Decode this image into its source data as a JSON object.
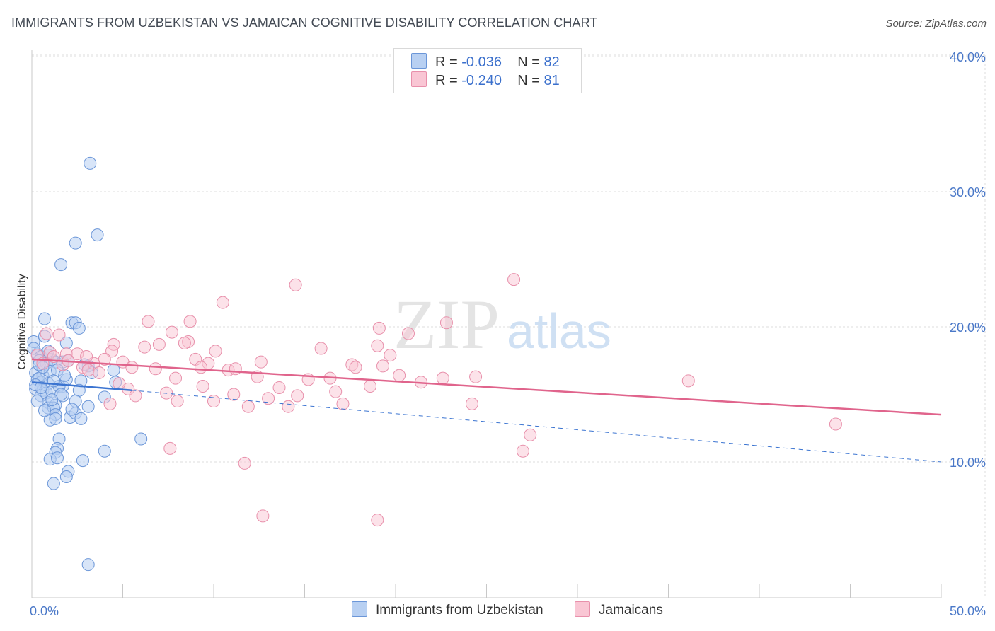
{
  "title": "IMMIGRANTS FROM UZBEKISTAN VS JAMAICAN COGNITIVE DISABILITY CORRELATION CHART",
  "source": "Source: ZipAtlas.com",
  "watermark": {
    "zip": "ZIP",
    "atlas": "atlas"
  },
  "legend_top": [
    {
      "r_label": "R =",
      "r_value": "-0.036",
      "n_label": "N =",
      "n_value": "82"
    },
    {
      "r_label": "R =",
      "r_value": "-0.240",
      "n_label": "N =",
      "n_value": "81"
    }
  ],
  "colors": {
    "blue_fill": "#b8d0f2",
    "blue_stroke": "#6b96d8",
    "blue_line": "#3b74d1",
    "pink_fill": "#f9c6d4",
    "pink_stroke": "#e890ab",
    "pink_line": "#e0648c",
    "tick": "#4a78c8",
    "grid": "#dedede"
  },
  "chart_data": {
    "type": "scatter",
    "title": "IMMIGRANTS FROM UZBEKISTAN VS JAMAICAN COGNITIVE DISABILITY CORRELATION CHART",
    "xlabel": "",
    "ylabel": "Cognitive Disability",
    "xlim": [
      0,
      50
    ],
    "ylim": [
      0,
      42
    ],
    "x_tick_labels": [
      "0.0%",
      "50.0%"
    ],
    "y_ticks": [
      10,
      20,
      30,
      40
    ],
    "y_tick_labels": [
      "10.0%",
      "20.0%",
      "30.0%",
      "40.0%"
    ],
    "grid": true,
    "legend_position": "bottom",
    "series": [
      {
        "name": "Immigrants from Uzbekistan",
        "r": -0.036,
        "n": 82,
        "trend": {
          "x0": 0,
          "y0": 15.9,
          "x1": 5.5,
          "y1": 15.3,
          "dashed_to_x": 50,
          "dashed_to_y": 10.0
        },
        "points": [
          [
            3.2,
            32.1
          ],
          [
            3.6,
            26.8
          ],
          [
            2.4,
            26.2
          ],
          [
            1.6,
            24.6
          ],
          [
            0.7,
            20.6
          ],
          [
            2.2,
            20.3
          ],
          [
            2.4,
            20.3
          ],
          [
            2.6,
            19.9
          ],
          [
            0.7,
            19.3
          ],
          [
            0.1,
            18.9
          ],
          [
            1.9,
            18.8
          ],
          [
            0.3,
            18.0
          ],
          [
            0.1,
            18.4
          ],
          [
            0.5,
            17.8
          ],
          [
            0.9,
            17.9
          ],
          [
            1.1,
            17.6
          ],
          [
            1.3,
            17.4
          ],
          [
            1.7,
            17.4
          ],
          [
            0.4,
            17.5
          ],
          [
            0.8,
            17.3
          ],
          [
            3.1,
            17.1
          ],
          [
            0.2,
            16.6
          ],
          [
            0.6,
            16.4
          ],
          [
            1.0,
            16.7
          ],
          [
            1.4,
            16.8
          ],
          [
            3.3,
            16.6
          ],
          [
            4.5,
            16.8
          ],
          [
            0.3,
            16.1
          ],
          [
            0.5,
            15.9
          ],
          [
            0.9,
            15.8
          ],
          [
            1.7,
            15.6
          ],
          [
            2.7,
            16.0
          ],
          [
            4.6,
            15.9
          ],
          [
            0.2,
            15.4
          ],
          [
            0.6,
            15.3
          ],
          [
            0.8,
            15.1
          ],
          [
            1.1,
            15.2
          ],
          [
            1.5,
            15.6
          ],
          [
            2.6,
            15.3
          ],
          [
            0.5,
            14.9
          ],
          [
            1.7,
            14.9
          ],
          [
            4.0,
            14.8
          ],
          [
            0.3,
            14.5
          ],
          [
            0.9,
            14.4
          ],
          [
            1.3,
            14.2
          ],
          [
            2.4,
            14.5
          ],
          [
            0.9,
            14.0
          ],
          [
            1.2,
            14.0
          ],
          [
            3.1,
            14.1
          ],
          [
            1.3,
            13.5
          ],
          [
            2.1,
            13.3
          ],
          [
            2.4,
            13.6
          ],
          [
            2.7,
            13.2
          ],
          [
            1.0,
            13.1
          ],
          [
            1.3,
            13.2
          ],
          [
            1.5,
            11.7
          ],
          [
            6.0,
            11.7
          ],
          [
            1.4,
            11.0
          ],
          [
            1.3,
            10.7
          ],
          [
            4.0,
            10.8
          ],
          [
            1.0,
            10.2
          ],
          [
            1.4,
            10.3
          ],
          [
            2.8,
            10.1
          ],
          [
            2.0,
            9.3
          ],
          [
            1.9,
            8.9
          ],
          [
            1.2,
            8.4
          ],
          [
            3.1,
            2.4
          ],
          [
            0.4,
            16.2
          ],
          [
            1.9,
            16.1
          ],
          [
            0.6,
            17.0
          ],
          [
            2.0,
            17.5
          ],
          [
            1.6,
            15.0
          ],
          [
            0.2,
            15.7
          ],
          [
            1.1,
            14.6
          ],
          [
            0.7,
            13.8
          ],
          [
            2.2,
            13.9
          ],
          [
            0.4,
            17.2
          ],
          [
            1.8,
            16.4
          ],
          [
            0.9,
            18.2
          ],
          [
            2.9,
            17.2
          ],
          [
            0.5,
            15.5
          ],
          [
            1.2,
            16.0
          ]
        ]
      },
      {
        "name": "Jamaicans",
        "r": -0.24,
        "n": 81,
        "trend": {
          "x0": 0,
          "y0": 17.6,
          "x1": 50,
          "y1": 13.5
        },
        "points": [
          [
            26.5,
            23.5
          ],
          [
            14.5,
            23.1
          ],
          [
            10.5,
            21.8
          ],
          [
            0.8,
            19.5
          ],
          [
            6.4,
            20.4
          ],
          [
            8.7,
            20.4
          ],
          [
            22.8,
            20.3
          ],
          [
            19.1,
            19.9
          ],
          [
            7.7,
            19.6
          ],
          [
            20.7,
            19.5
          ],
          [
            1.5,
            19.4
          ],
          [
            4.5,
            18.7
          ],
          [
            8.6,
            18.9
          ],
          [
            8.4,
            18.8
          ],
          [
            7.0,
            18.7
          ],
          [
            6.2,
            18.5
          ],
          [
            15.9,
            18.4
          ],
          [
            19.0,
            18.6
          ],
          [
            4.4,
            18.2
          ],
          [
            10.1,
            18.2
          ],
          [
            1.0,
            18.1
          ],
          [
            1.9,
            18.0
          ],
          [
            2.5,
            18.0
          ],
          [
            0.3,
            17.9
          ],
          [
            19.7,
            17.9
          ],
          [
            9.0,
            17.6
          ],
          [
            4.0,
            17.6
          ],
          [
            3.4,
            17.3
          ],
          [
            5.0,
            17.4
          ],
          [
            12.6,
            17.4
          ],
          [
            17.6,
            17.2
          ],
          [
            9.7,
            17.3
          ],
          [
            1.7,
            17.2
          ],
          [
            5.5,
            17.0
          ],
          [
            2.8,
            17.0
          ],
          [
            10.8,
            16.8
          ],
          [
            11.2,
            16.9
          ],
          [
            17.8,
            17.0
          ],
          [
            19.3,
            17.1
          ],
          [
            3.1,
            16.8
          ],
          [
            3.7,
            16.6
          ],
          [
            12.4,
            16.3
          ],
          [
            20.2,
            16.4
          ],
          [
            22.6,
            16.2
          ],
          [
            7.9,
            16.2
          ],
          [
            36.1,
            16.0
          ],
          [
            15.2,
            16.1
          ],
          [
            9.4,
            15.6
          ],
          [
            5.3,
            15.4
          ],
          [
            18.6,
            15.6
          ],
          [
            7.4,
            15.1
          ],
          [
            16.7,
            15.2
          ],
          [
            11.1,
            15.0
          ],
          [
            14.6,
            14.9
          ],
          [
            5.7,
            14.9
          ],
          [
            10.0,
            14.5
          ],
          [
            8.0,
            14.5
          ],
          [
            13.0,
            14.7
          ],
          [
            4.3,
            14.3
          ],
          [
            17.1,
            14.3
          ],
          [
            24.2,
            14.3
          ],
          [
            14.1,
            14.1
          ],
          [
            11.9,
            14.1
          ],
          [
            44.2,
            12.8
          ],
          [
            27.4,
            12.0
          ],
          [
            7.6,
            11.0
          ],
          [
            27.0,
            10.8
          ],
          [
            11.7,
            9.9
          ],
          [
            12.7,
            6.0
          ],
          [
            19.0,
            5.7
          ],
          [
            1.2,
            17.8
          ],
          [
            2.0,
            17.5
          ],
          [
            6.8,
            16.9
          ],
          [
            13.6,
            15.5
          ],
          [
            21.4,
            15.9
          ],
          [
            4.8,
            15.8
          ],
          [
            0.6,
            17.3
          ],
          [
            24.4,
            16.3
          ],
          [
            3.0,
            17.8
          ],
          [
            16.4,
            16.2
          ],
          [
            9.3,
            17.0
          ]
        ]
      }
    ]
  }
}
